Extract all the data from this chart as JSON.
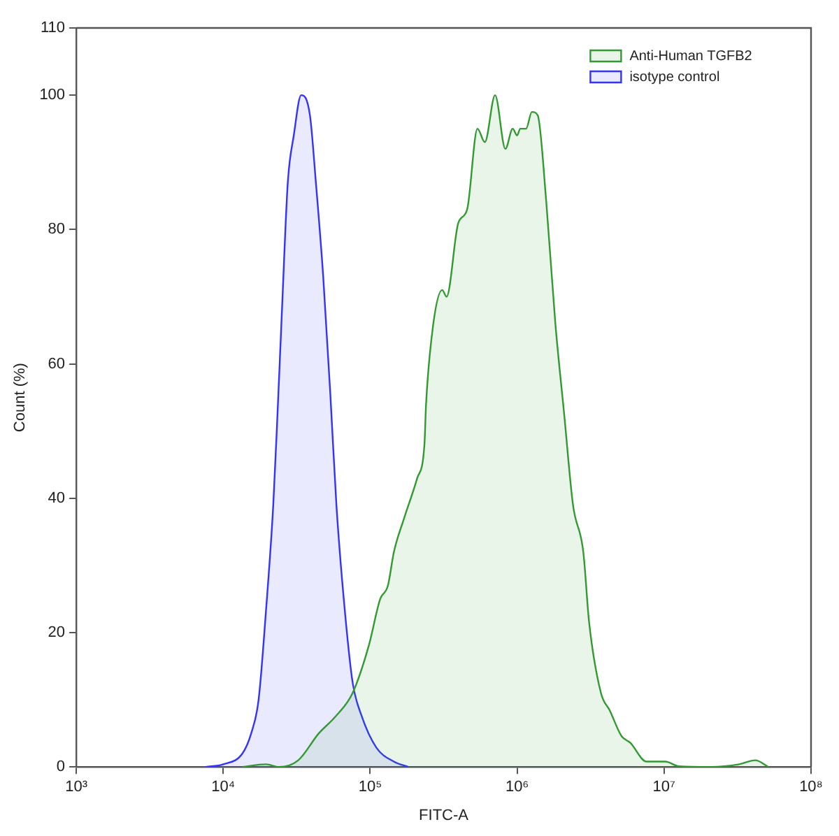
{
  "chart_data": {
    "type": "area",
    "xlabel": "FITC-A",
    "ylabel": "Count (%)",
    "log": "x",
    "grid": false,
    "legend": "top right",
    "marker": "none",
    "line_style": "solid",
    "xlim": [
      1000,
      100000000
    ],
    "xticks": [
      {
        "value": 1000,
        "label": "10³"
      },
      {
        "value": 10000,
        "label": "10⁴"
      },
      {
        "value": 100000,
        "label": "10⁵"
      },
      {
        "value": 1000000,
        "label": "10⁶"
      },
      {
        "value": 10000000,
        "label": "10⁷"
      },
      {
        "value": 100000000,
        "label": "10⁸"
      }
    ],
    "ylim": [
      0,
      110
    ],
    "yticks": [
      0,
      20,
      40,
      60,
      80,
      100,
      110
    ],
    "series": [
      {
        "name": "Anti-Human TGFB2",
        "color": "#339933",
        "x": [
          13500,
          19500,
          24000,
          32400,
          44700,
          57500,
          75900,
          97700,
          117000,
          132000,
          145000,
          170000,
          209000,
          234000,
          240000,
          269000,
          309000,
          331000,
          398000,
          457000,
          537000,
          603000,
          708000,
          832000,
          933000,
          1000000,
          1050000,
          1150000,
          1260000,
          1380000,
          1580000,
          1820000,
          2090000,
          2400000,
          2820000,
          3090000,
          3720000,
          4270000,
          5130000,
          5890000,
          7590000,
          10200000,
          12600000,
          20900000,
          32400000,
          41700000,
          51300000
        ],
        "values": [
          0,
          0.4,
          0,
          1,
          5,
          7.4,
          11,
          18,
          25,
          27,
          32,
          37,
          43,
          48,
          54,
          66,
          71,
          70,
          81,
          83,
          95,
          93,
          100,
          92,
          95,
          94,
          95,
          95,
          97.5,
          97,
          84,
          66,
          52.5,
          39,
          32,
          21.5,
          11,
          8.4,
          4.6,
          3.6,
          0.8,
          0.8,
          0.1,
          0,
          0.4,
          1,
          0
        ]
      },
      {
        "name": "isotype control",
        "color": "#3333ff",
        "x": [
          7600,
          10000,
          13500,
          15500,
          17400,
          19500,
          21900,
          23400,
          25100,
          27500,
          30200,
          33900,
          38900,
          42700,
          47900,
          53700,
          58900,
          66100,
          75900,
          87100,
          110000,
          145000,
          182000
        ],
        "values": [
          0,
          0.4,
          2,
          5,
          10,
          23,
          39,
          52.5,
          68,
          87,
          94,
          100,
          97,
          87,
          73,
          55,
          39,
          25,
          12.6,
          7.7,
          2.9,
          0.8,
          0
        ]
      }
    ]
  }
}
